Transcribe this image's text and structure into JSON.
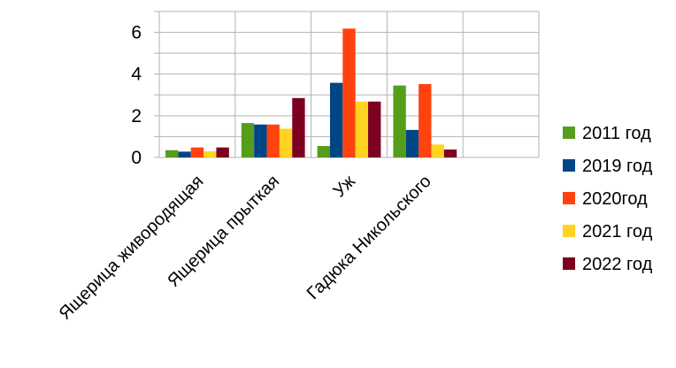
{
  "chart_data": {
    "type": "bar",
    "categories": [
      "Ящерица живородящая",
      "Ящерица прыткая",
      "Уж",
      "Гадюка Никольского",
      ""
    ],
    "series": [
      {
        "name": "2011 год",
        "color": "#579d1c",
        "values": [
          0.35,
          1.65,
          0.55,
          3.45,
          0
        ]
      },
      {
        "name": "2019 год",
        "color": "#004586",
        "values": [
          0.28,
          1.58,
          3.58,
          1.32,
          0
        ]
      },
      {
        "name": "2020год",
        "color": "#ff420e",
        "values": [
          0.48,
          1.58,
          6.18,
          3.52,
          0
        ]
      },
      {
        "name": "2021 год",
        "color": "#ffd320",
        "values": [
          0.3,
          1.38,
          2.68,
          0.62,
          0
        ]
      },
      {
        "name": "2022 год",
        "color": "#7e0021",
        "values": [
          0.48,
          2.85,
          2.68,
          0.38,
          0
        ]
      }
    ],
    "yticks": [
      "0",
      "2",
      "4",
      "6"
    ],
    "ylim": [
      0,
      7
    ],
    "grid": true,
    "legend": "right",
    "title": "",
    "xlabel": "",
    "ylabel": ""
  }
}
